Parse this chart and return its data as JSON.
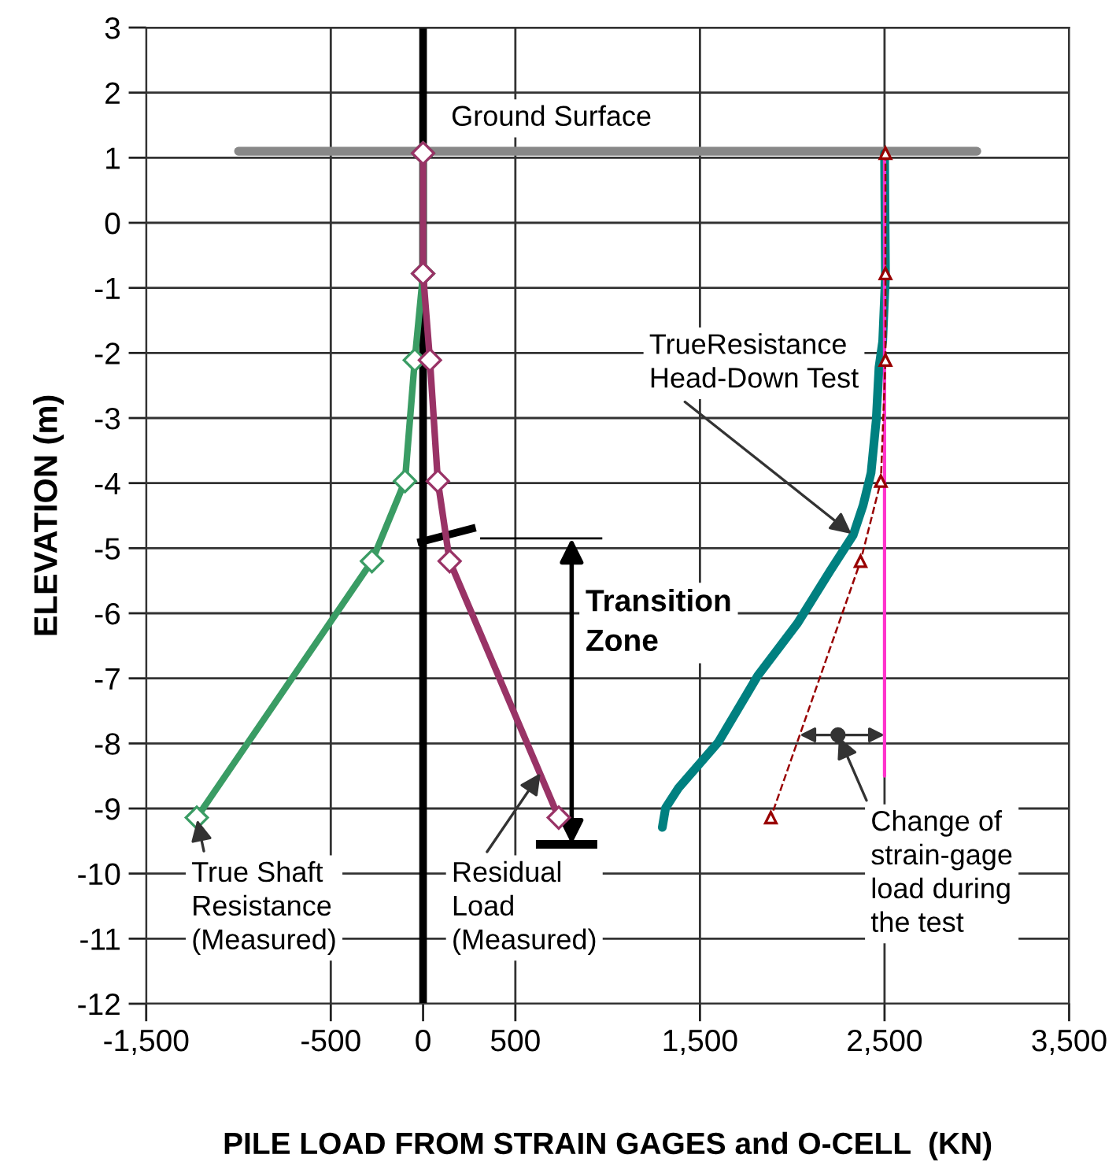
{
  "chart_data": {
    "type": "line",
    "xlabel": "PILE LOAD FROM STRAIN GAGES and O-CELL  (KN)",
    "ylabel": "ELEVATION (m)",
    "xlim": [
      -1500,
      3500
    ],
    "xticks": [
      {
        "value": -1500,
        "label": "-1,500"
      },
      -500,
      0,
      500,
      {
        "value": 1500,
        "label": "1,500"
      },
      {
        "value": 2500,
        "label": "2,500"
      },
      {
        "value": 3500,
        "label": "3,500"
      }
    ],
    "ylim": [
      -12,
      3
    ],
    "yticks": [
      3,
      2,
      1,
      0,
      -1,
      -2,
      -3,
      -4,
      -5,
      -6,
      -7,
      -8,
      -9,
      -10,
      -11,
      -12
    ],
    "grid": true,
    "series": [
      {
        "color": "#888888",
        "x": [
          -1000,
          3000
        ],
        "values": [
          1.1,
          1.1
        ],
        "marker": "none",
        "line_style": "solid"
      },
      {
        "color": "#3a9c64",
        "x": [
          0,
          0,
          -45,
          -98,
          -277,
          -1226
        ],
        "values": [
          1.07,
          -0.78,
          -2.11,
          -3.97,
          -5.2,
          -9.14
        ],
        "marker": "diamond",
        "line_style": "solid"
      },
      {
        "color": "#993366",
        "x": [
          0,
          0,
          37,
          80,
          144,
          735
        ],
        "values": [
          1.07,
          -0.78,
          -2.11,
          -3.97,
          -5.2,
          -9.14
        ],
        "marker": "diamond",
        "line_style": "solid"
      },
      {
        "color": "#008080",
        "x": [
          2500,
          2505,
          2490,
          2470,
          2455,
          2427,
          2384,
          2330,
          2205,
          2027,
          1813,
          1600,
          1385,
          1314,
          1296
        ],
        "values": [
          1.07,
          -0.81,
          -1.82,
          -2.22,
          -3.03,
          -3.84,
          -4.34,
          -4.8,
          -5.35,
          -6.16,
          -6.96,
          -7.98,
          -8.68,
          -8.99,
          -9.29
        ],
        "marker": "none",
        "line_style": "solid"
      },
      {
        "color": "#ff33cc",
        "x": [
          2500,
          2500
        ],
        "values": [
          1.07,
          -8.5
        ],
        "marker": "none",
        "line_style": "solid"
      },
      {
        "color": "#990000",
        "x": [
          2505,
          2505,
          2505,
          2480,
          2370,
          1884
        ],
        "values": [
          1.07,
          -0.78,
          -2.11,
          -3.97,
          -5.2,
          -9.14
        ],
        "marker": "triangle",
        "line_style": "dashed"
      }
    ],
    "ref_lines": [
      {
        "axis": "x",
        "value": 0,
        "label": null,
        "color": "#000000"
      }
    ],
    "annotations": [
      "Transition\nZone",
      {
        "text": "Ground Surface",
        "x": 700,
        "y": 1.1
      },
      {
        "text": "TrueResistance\nHead-Down Test",
        "x": 2330,
        "y": -4.8
      },
      {
        "text": "True Shaft\nResistance\n(Measured)",
        "x": -1226,
        "y": -9.14
      },
      {
        "text": "Residual\nLoad\n(Measured)",
        "x": 643,
        "y": -8.43
      },
      {
        "text": "Change of\nstrain-gage\nload during\nthe test",
        "x": 2248,
        "y": -7.87
      }
    ]
  }
}
